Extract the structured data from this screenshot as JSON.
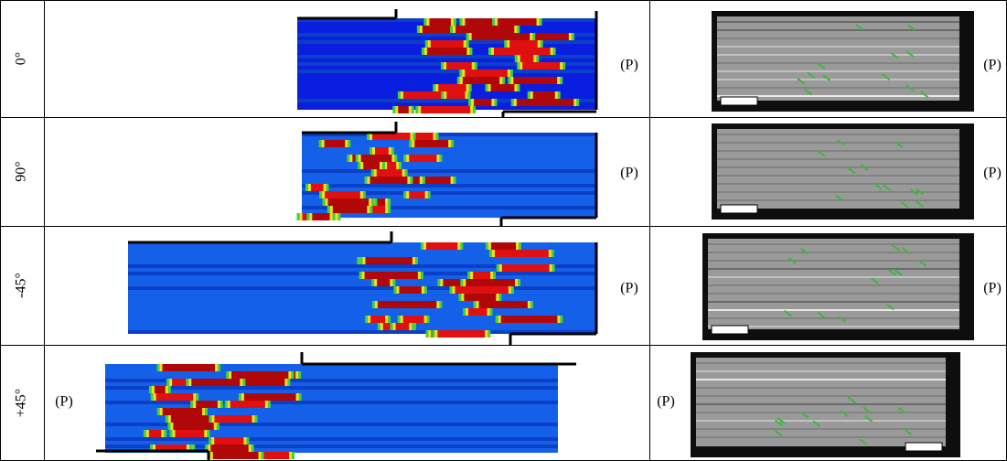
{
  "rows": [
    {
      "angle": "0°",
      "simulation_label": "(P)",
      "micrograph_label": "(P)"
    },
    {
      "angle": "90°",
      "simulation_label": "(P)",
      "micrograph_label": "(P)"
    },
    {
      "angle": "-45°",
      "simulation_label": "(P)",
      "micrograph_label": "(P)"
    },
    {
      "angle": "+45°",
      "simulation_label": "(P)",
      "micrograph_label": "(P)"
    }
  ]
}
